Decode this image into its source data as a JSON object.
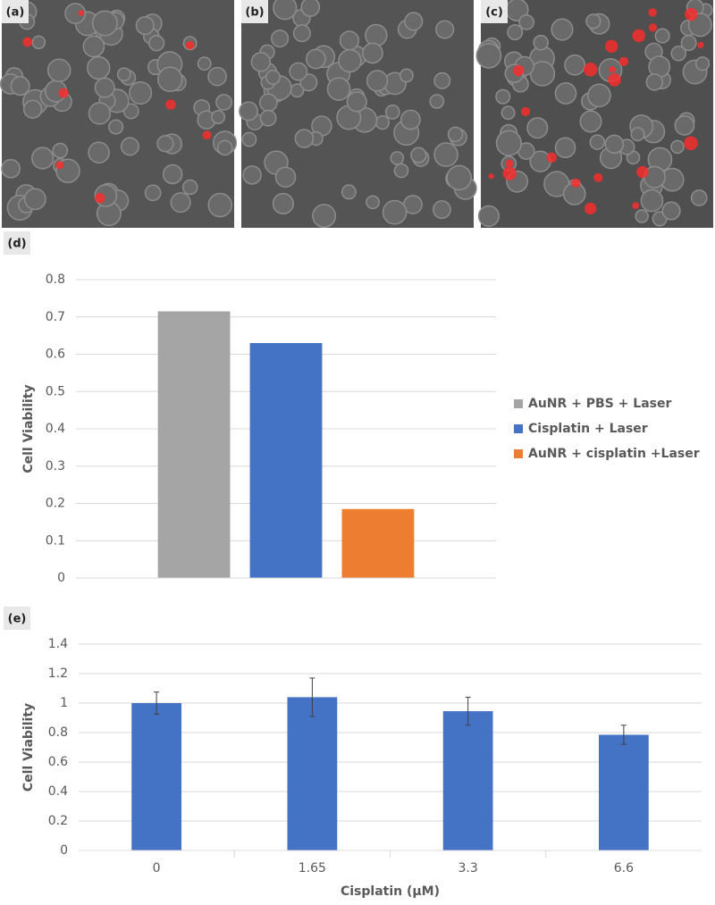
{
  "image_labels": [
    "(a)",
    "(b)",
    "(c)"
  ],
  "chart_data": [
    {
      "type": "bar",
      "panel_label": "(d)",
      "ylabel": "Cell Viability",
      "categories": [
        null
      ],
      "series": [
        {
          "name": "AuNR + PBS + Laser",
          "color": "#a5a5a5",
          "values": [
            0.715
          ]
        },
        {
          "name": "Cisplatin + Laser",
          "color": "#4472c4",
          "values": [
            0.63
          ]
        },
        {
          "name": "AuNR + cisplatin +Laser",
          "color": "#ed7d31",
          "values": [
            0.185
          ]
        }
      ],
      "ylim": [
        0,
        0.8
      ],
      "yticks": [
        0,
        0.1,
        0.2,
        0.3,
        0.4,
        0.5,
        0.6,
        0.7,
        0.8
      ],
      "grid": true,
      "legend": "right"
    },
    {
      "type": "bar",
      "panel_label": "(e)",
      "ylabel": "Cell Viability",
      "xlabel": "Cisplatin (μM)",
      "categories": [
        "0",
        "1.65",
        "3.3",
        "6.6"
      ],
      "values": [
        1.0,
        1.04,
        0.945,
        0.785
      ],
      "errors": [
        0.075,
        0.13,
        0.095,
        0.065
      ],
      "color": "#4472c4",
      "ylim": [
        0,
        1.4
      ],
      "yticks": [
        0,
        0.2,
        0.4,
        0.6,
        0.8,
        1,
        1.2,
        1.4
      ],
      "grid": true
    }
  ]
}
